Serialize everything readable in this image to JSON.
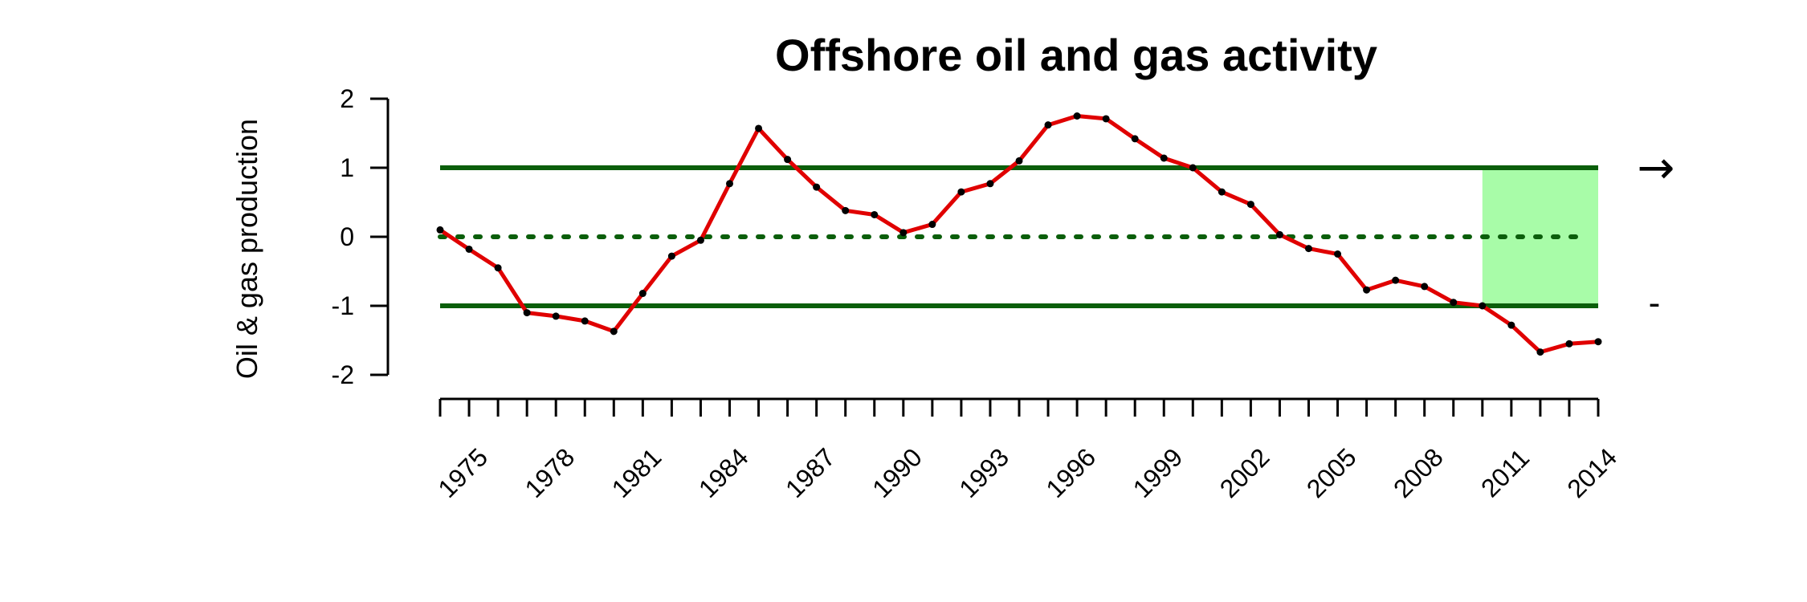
{
  "chart_data": {
    "type": "line",
    "title": "Offshore oil and gas activity",
    "xlabel": "",
    "ylabel": "Oil & gas production",
    "x": [
      1974,
      1975,
      1976,
      1977,
      1978,
      1979,
      1980,
      1981,
      1982,
      1983,
      1984,
      1985,
      1986,
      1987,
      1988,
      1989,
      1990,
      1991,
      1992,
      1993,
      1994,
      1995,
      1996,
      1997,
      1998,
      1999,
      2000,
      2001,
      2002,
      2003,
      2004,
      2005,
      2006,
      2007,
      2008,
      2009,
      2010,
      2011,
      2012,
      2013,
      2014
    ],
    "series": [
      {
        "values": [
          0.1,
          -0.18,
          -0.45,
          -1.1,
          -1.15,
          -1.22,
          -1.37,
          -0.82,
          -0.28,
          -0.05,
          0.77,
          1.57,
          1.12,
          0.72,
          0.38,
          0.32,
          0.06,
          0.18,
          0.65,
          0.77,
          1.1,
          1.62,
          1.75,
          1.71,
          1.42,
          1.14,
          1.0,
          0.65,
          0.47,
          0.03,
          -0.17,
          -0.25,
          -0.77,
          -0.63,
          -0.72,
          -0.95,
          -1.0,
          -1.28,
          -1.67,
          -1.55,
          -1.52
        ],
        "color": "#e00000"
      }
    ],
    "xlim": [
      1974,
      2014
    ],
    "ylim": [
      -2,
      2
    ],
    "yticks": [
      "2",
      "1",
      "0",
      "-1",
      "-2"
    ],
    "xticklabels": [
      "1975",
      "1978",
      "1981",
      "1984",
      "1987",
      "1990",
      "1993",
      "1996",
      "1999",
      "2002",
      "2005",
      "2008",
      "2011",
      "2014"
    ],
    "reference_lines": {
      "upper": 1,
      "mean": 0,
      "lower": -1,
      "color": "#0b5e0b"
    },
    "highlight": {
      "from": 2010,
      "to": 2014,
      "color": "#a8fca8"
    },
    "trend_symbol": "→",
    "status_symbol": "-"
  }
}
